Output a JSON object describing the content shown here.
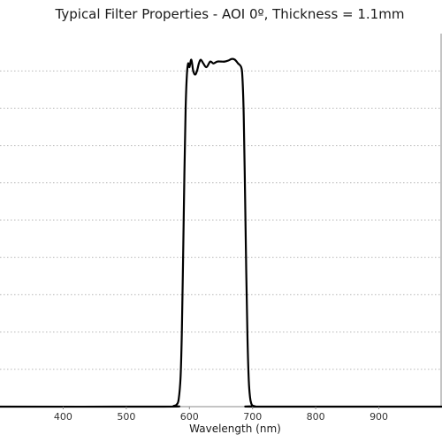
{
  "chart_data": {
    "type": "line",
    "title": "Typical Filter Properties - AOI 0º, Thickness = 1.1mm",
    "xlabel": "Wavelength (nm)",
    "ylabel": "",
    "xlim": [
      300,
      1000
    ],
    "ylim": [
      0,
      100
    ],
    "x_ticks": [
      400,
      500,
      600,
      700,
      800,
      900
    ],
    "y_grid": [
      10,
      20,
      30,
      40,
      50,
      60,
      70,
      80,
      90
    ],
    "grid": true,
    "series": [
      {
        "color": "#000000",
        "x": [
          300,
          560,
          575,
          580,
          583,
          586,
          588,
          590,
          592,
          594,
          596,
          598,
          600,
          603,
          606,
          609,
          612,
          615,
          618,
          622,
          627,
          633,
          638,
          644,
          650,
          656,
          662,
          667,
          672,
          677,
          682,
          684,
          686,
          688,
          690,
          692,
          694,
          696,
          698,
          700,
          704,
          712,
          1000
        ],
        "y": [
          0,
          0,
          0.2,
          0.6,
          2,
          8,
          20,
          40,
          62,
          80,
          89,
          92,
          91,
          93,
          90,
          89,
          90,
          92,
          93,
          92,
          91,
          92.5,
          92,
          92.5,
          92.5,
          92.5,
          92.8,
          93.2,
          93,
          92,
          91,
          88,
          78,
          58,
          36,
          18,
          7,
          2.5,
          0.8,
          0.3,
          0.1,
          0,
          0
        ]
      }
    ]
  }
}
